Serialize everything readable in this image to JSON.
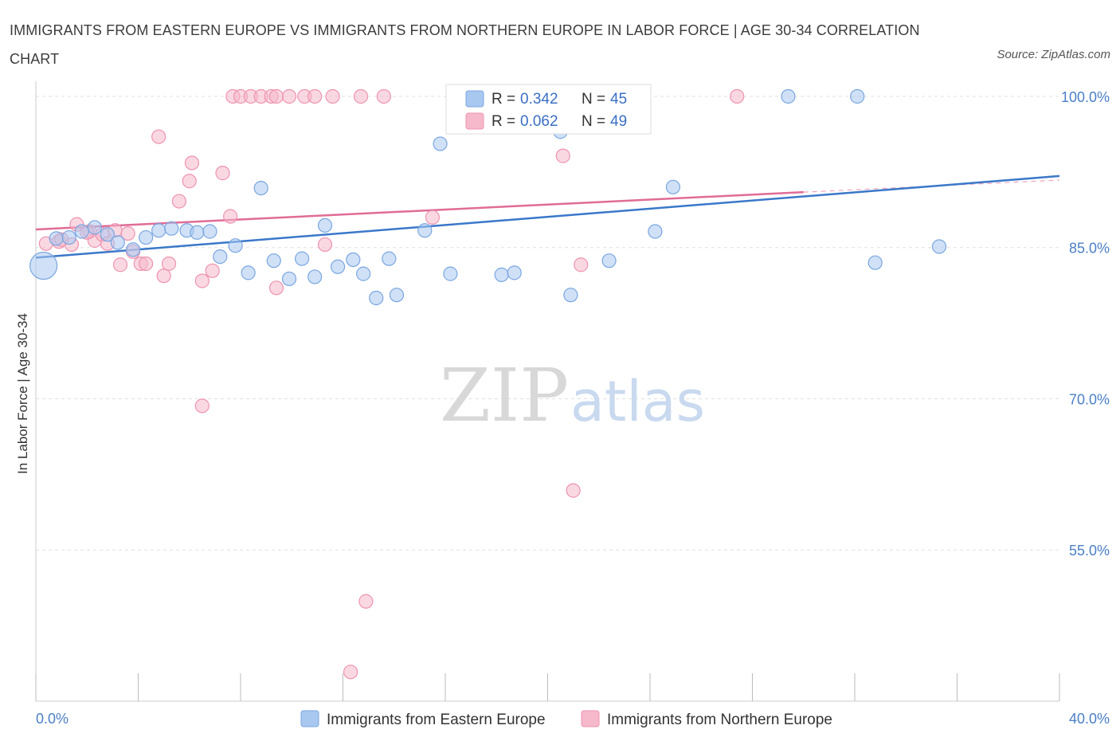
{
  "header": {
    "title": "IMMIGRANTS FROM EASTERN EUROPE VS IMMIGRANTS FROM NORTHERN EUROPE IN LABOR FORCE | AGE 30-34 CORRELATION CHART",
    "source": "Source: ZipAtlas.com"
  },
  "watermark": {
    "zip": "ZIP",
    "atlas": "atlas"
  },
  "legend": {
    "r_label": "R =",
    "n_label": "N =",
    "series": [
      {
        "r": "0.342",
        "n": "45"
      },
      {
        "r": "0.062",
        "n": "49"
      }
    ]
  },
  "colors": {
    "blue_fill": "#a9c8f0",
    "blue_stroke": "#7aa6e0",
    "blue_line": "#3a78c9",
    "pink_fill": "#f6b8cb",
    "pink_stroke": "#ee93b0",
    "pink_line": "#e06c96",
    "tick_text": "#4a7fc6",
    "grid": "#e0e0e0"
  },
  "chart_data": {
    "type": "scatter",
    "title": "IMMIGRANTS FROM EASTERN EUROPE VS IMMIGRANTS FROM NORTHERN EUROPE IN LABOR FORCE | AGE 30-34 CORRELATION CHART",
    "xlabel": "",
    "ylabel": "In Labor Force | Age 30-34",
    "xlim": [
      0,
      40
    ],
    "ylim": [
      40,
      101.5
    ],
    "x_tick_labels": [
      "0.0%",
      "40.0%"
    ],
    "y_ticks": [
      55,
      70,
      85,
      100
    ],
    "y_tick_labels": [
      "55.0%",
      "70.0%",
      "85.0%",
      "100.0%"
    ],
    "grid": true,
    "legend_position": "top-center",
    "series": [
      {
        "name": "Immigrants from Eastern Europe",
        "color": "#a9c8f0",
        "r": 0.342,
        "n": 45,
        "trend": {
          "x": [
            0,
            40
          ],
          "y": [
            84.0,
            92.1
          ]
        },
        "points": [
          [
            0.3,
            83.2
          ],
          [
            0.8,
            85.9
          ],
          [
            1.3,
            86.0
          ],
          [
            1.8,
            86.6
          ],
          [
            2.3,
            87.0
          ],
          [
            2.8,
            86.3
          ],
          [
            3.2,
            85.5
          ],
          [
            3.8,
            84.8
          ],
          [
            4.3,
            86.0
          ],
          [
            4.8,
            86.7
          ],
          [
            5.3,
            86.9
          ],
          [
            5.9,
            86.7
          ],
          [
            6.3,
            86.5
          ],
          [
            6.8,
            86.6
          ],
          [
            7.2,
            84.1
          ],
          [
            7.8,
            85.2
          ],
          [
            8.3,
            82.5
          ],
          [
            8.8,
            90.9
          ],
          [
            9.3,
            83.7
          ],
          [
            9.9,
            81.9
          ],
          [
            10.4,
            83.9
          ],
          [
            10.9,
            82.1
          ],
          [
            11.3,
            87.2
          ],
          [
            11.8,
            83.1
          ],
          [
            12.4,
            83.8
          ],
          [
            12.8,
            82.4
          ],
          [
            13.3,
            80.0
          ],
          [
            13.8,
            83.9
          ],
          [
            14.1,
            80.3
          ],
          [
            15.2,
            86.7
          ],
          [
            15.8,
            95.3
          ],
          [
            16.2,
            82.4
          ],
          [
            17.8,
            100.0
          ],
          [
            18.2,
            82.3
          ],
          [
            18.7,
            82.5
          ],
          [
            20.5,
            96.5
          ],
          [
            20.9,
            80.3
          ],
          [
            21.1,
            100.0
          ],
          [
            22.4,
            83.7
          ],
          [
            24.2,
            86.6
          ],
          [
            24.9,
            91.0
          ],
          [
            29.4,
            100.0
          ],
          [
            32.1,
            100.0
          ],
          [
            32.8,
            83.5
          ],
          [
            35.3,
            85.1
          ]
        ]
      },
      {
        "name": "Immigrants from Northern Europe",
        "color": "#f6b8cb",
        "r": 0.062,
        "n": 49,
        "trend": {
          "x": [
            0,
            30
          ],
          "y": [
            86.8,
            90.5
          ]
        },
        "trend_extension": {
          "x": [
            30,
            40
          ],
          "y": [
            90.5,
            91.7
          ]
        },
        "points": [
          [
            0.4,
            85.4
          ],
          [
            0.9,
            85.6
          ],
          [
            1.4,
            85.3
          ],
          [
            1.6,
            87.3
          ],
          [
            2.1,
            86.6
          ],
          [
            2.3,
            85.7
          ],
          [
            2.6,
            86.3
          ],
          [
            2.8,
            85.4
          ],
          [
            3.1,
            86.7
          ],
          [
            3.3,
            83.3
          ],
          [
            3.6,
            86.4
          ],
          [
            3.8,
            84.6
          ],
          [
            4.1,
            83.4
          ],
          [
            4.3,
            83.4
          ],
          [
            4.8,
            96.0
          ],
          [
            5.0,
            82.2
          ],
          [
            5.2,
            83.4
          ],
          [
            5.6,
            89.6
          ],
          [
            6.0,
            91.6
          ],
          [
            6.1,
            93.4
          ],
          [
            6.5,
            81.7
          ],
          [
            6.5,
            69.3
          ],
          [
            6.9,
            82.7
          ],
          [
            7.3,
            92.4
          ],
          [
            7.6,
            88.1
          ],
          [
            7.7,
            100.0
          ],
          [
            8.0,
            100.0
          ],
          [
            8.4,
            100.0
          ],
          [
            8.8,
            100.0
          ],
          [
            9.2,
            100.0
          ],
          [
            9.4,
            100.0
          ],
          [
            9.4,
            81.0
          ],
          [
            9.9,
            100.0
          ],
          [
            10.5,
            100.0
          ],
          [
            10.9,
            100.0
          ],
          [
            11.3,
            85.3
          ],
          [
            11.6,
            100.0
          ],
          [
            12.7,
            100.0
          ],
          [
            12.9,
            49.9
          ],
          [
            13.6,
            100.0
          ],
          [
            12.3,
            42.9
          ],
          [
            15.5,
            88.0
          ],
          [
            18.1,
            100.0
          ],
          [
            20.6,
            94.1
          ],
          [
            21.0,
            60.9
          ],
          [
            21.3,
            83.3
          ],
          [
            27.4,
            100.0
          ],
          [
            2.0,
            86.5
          ],
          [
            1.0,
            85.8
          ]
        ]
      }
    ]
  }
}
